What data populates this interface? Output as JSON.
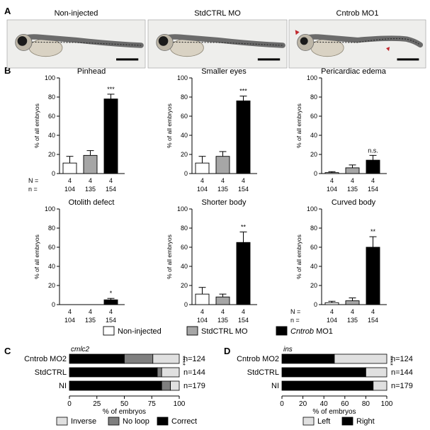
{
  "panel_letters": {
    "A": "A",
    "B": "B",
    "C": "C",
    "D": "D"
  },
  "photos": [
    {
      "title": "Non-injected",
      "arrowheads": 0
    },
    {
      "title": "StdCTRL MO",
      "arrowheads": 0
    },
    {
      "title": "Cntrob MO1",
      "arrowheads": 2
    }
  ],
  "colors": {
    "non_injected": "#ffffff",
    "stdctrl": "#a6a6a6",
    "cntrob": "#000000",
    "inverse": "#e0e0e0",
    "no_loop": "#7f7f7f",
    "correct": "#000000",
    "left": "#e0e0e0",
    "right": "#000000",
    "arrowhead": "#c1272d"
  },
  "count_labels": {
    "N": "N =",
    "n": "n ="
  },
  "chart_data": [
    {
      "type": "bar",
      "title": "Pinhead",
      "ylabel": "% of all embryos",
      "ylim": [
        0,
        100
      ],
      "yticks": [
        0,
        20,
        40,
        60,
        80,
        100
      ],
      "categories": [
        "Non-injected",
        "StdCTRL MO",
        "Cntrob MO1"
      ],
      "values": [
        11,
        19,
        78
      ],
      "errors": [
        7,
        5,
        5
      ],
      "significance": [
        "",
        "",
        "***"
      ],
      "N": [
        "4",
        "4",
        "4"
      ],
      "n": [
        "104",
        "135",
        "154"
      ]
    },
    {
      "type": "bar",
      "title": "Smaller eyes",
      "ylabel": "% of all embryos",
      "ylim": [
        0,
        100
      ],
      "yticks": [
        0,
        20,
        40,
        60,
        80,
        100
      ],
      "categories": [
        "Non-injected",
        "StdCTRL MO",
        "Cntrob MO1"
      ],
      "values": [
        11,
        18,
        76
      ],
      "errors": [
        7,
        5,
        5
      ],
      "significance": [
        "",
        "",
        "***"
      ],
      "N": [
        "4",
        "4",
        "4"
      ],
      "n": [
        "104",
        "135",
        "154"
      ]
    },
    {
      "type": "bar",
      "title": "Pericardiac edema",
      "ylabel": "% of all embryos",
      "ylim": [
        0,
        100
      ],
      "yticks": [
        0,
        20,
        40,
        60,
        80,
        100
      ],
      "categories": [
        "Non-injected",
        "StdCTRL MO",
        "Cntrob MO1"
      ],
      "values": [
        1,
        6,
        14
      ],
      "errors": [
        1,
        3,
        5
      ],
      "significance": [
        "",
        "",
        "n.s."
      ],
      "N": [
        "4",
        "4",
        "4"
      ],
      "n": [
        "104",
        "135",
        "154"
      ]
    },
    {
      "type": "bar",
      "title": "Otolith defect",
      "ylabel": "% of all embryos",
      "ylim": [
        0,
        100
      ],
      "yticks": [
        0,
        20,
        40,
        60,
        80,
        100
      ],
      "categories": [
        "Non-injected",
        "StdCTRL MO",
        "Cntrob MO1"
      ],
      "values": [
        0,
        0,
        5
      ],
      "errors": [
        0,
        0,
        1.5
      ],
      "significance": [
        "",
        "",
        "*"
      ],
      "N": [
        "4",
        "4",
        "4"
      ],
      "n": [
        "104",
        "135",
        "154"
      ]
    },
    {
      "type": "bar",
      "title": "Shorter body",
      "ylabel": "% of all embryos",
      "ylim": [
        0,
        100
      ],
      "yticks": [
        0,
        20,
        40,
        60,
        80,
        100
      ],
      "categories": [
        "Non-injected",
        "StdCTRL MO",
        "Cntrob MO1"
      ],
      "values": [
        11,
        8,
        65
      ],
      "errors": [
        7,
        3,
        11
      ],
      "significance": [
        "",
        "",
        "**"
      ],
      "N": [
        "4",
        "4",
        "4"
      ],
      "n": [
        "104",
        "135",
        "154"
      ]
    },
    {
      "type": "bar",
      "title": "Curved body",
      "ylabel": "% of all embryos",
      "ylim": [
        0,
        100
      ],
      "yticks": [
        0,
        20,
        40,
        60,
        80,
        100
      ],
      "categories": [
        "Non-injected",
        "StdCTRL MO",
        "Cntrob MO1"
      ],
      "values": [
        2,
        4,
        60
      ],
      "errors": [
        1.5,
        3,
        11
      ],
      "significance": [
        "",
        "",
        "**"
      ],
      "N": [
        "4",
        "4",
        "4"
      ],
      "n": [
        "104",
        "135",
        "154"
      ]
    },
    {
      "type": "bar",
      "orientation": "horizontal-stacked",
      "title": "cmlc2",
      "xlabel": "% of embryos",
      "xlim": [
        0,
        100
      ],
      "xticks": [
        0,
        25,
        50,
        75,
        100
      ],
      "categories": [
        "Cntrob MO2",
        "StdCTRL",
        "NI"
      ],
      "series": [
        {
          "name": "Correct",
          "values": [
            50,
            80,
            84
          ]
        },
        {
          "name": "No loop",
          "values": [
            26,
            4,
            8
          ]
        },
        {
          "name": "Inverse",
          "values": [
            24,
            16,
            8
          ]
        }
      ],
      "counts": [
        "n=124",
        "n=144",
        "n=179"
      ],
      "significance": "****"
    },
    {
      "type": "bar",
      "orientation": "horizontal-stacked",
      "title": "ins",
      "xlabel": "% of embryos",
      "xlim": [
        0,
        100
      ],
      "xticks": [
        0,
        20,
        40,
        60,
        80,
        100
      ],
      "categories": [
        "Cntrob MO2",
        "StdCTRL",
        "NI"
      ],
      "series": [
        {
          "name": "Right",
          "values": [
            50,
            80,
            87
          ]
        },
        {
          "name": "Left",
          "values": [
            50,
            20,
            13
          ]
        }
      ],
      "counts": [
        "n=124",
        "n=144",
        "n=179"
      ],
      "significance": "****"
    }
  ],
  "legend_B": [
    {
      "label": "Non-injected",
      "color_key": "non_injected"
    },
    {
      "label": "StdCTRL MO",
      "color_key": "stdctrl"
    },
    {
      "label": "Cntrob MO1",
      "color_key": "cntrob",
      "italic_part": "Cntrob"
    }
  ],
  "legend_C": [
    {
      "label": "Inverse",
      "color_key": "inverse"
    },
    {
      "label": "No loop",
      "color_key": "no_loop"
    },
    {
      "label": "Correct",
      "color_key": "correct"
    }
  ],
  "legend_D": [
    {
      "label": "Left",
      "color_key": "left"
    },
    {
      "label": "Right",
      "color_key": "right"
    }
  ]
}
